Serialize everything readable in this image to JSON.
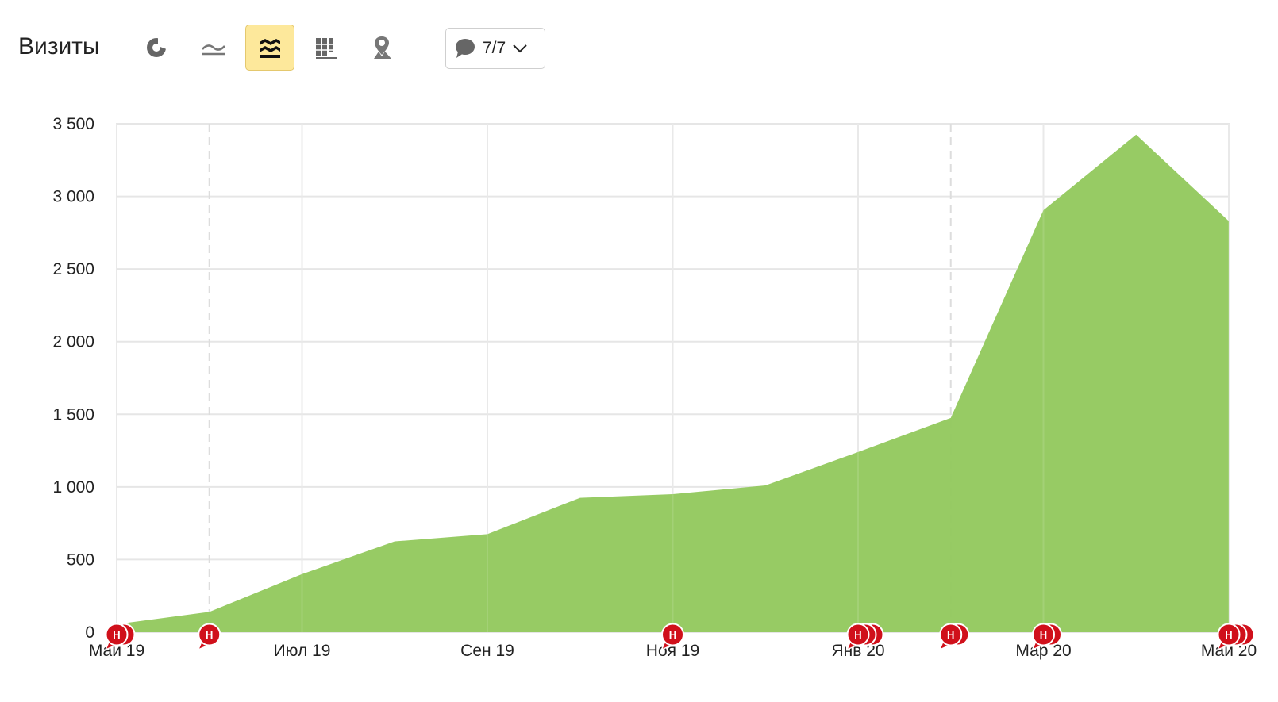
{
  "title": "Визиты",
  "toolbar": {
    "buttons": [
      {
        "name": "pie-chart-icon",
        "active": false
      },
      {
        "name": "line-chart-icon",
        "active": false
      },
      {
        "name": "area-chart-icon",
        "active": true
      },
      {
        "name": "bar-chart-icon",
        "active": false
      },
      {
        "name": "map-icon",
        "active": false
      }
    ],
    "comments_count": "7/7",
    "comments_icon": "speech-bubble-icon",
    "dropdown_icon": "chevron-down-icon"
  },
  "colors": {
    "area": "#94c95f",
    "active_button": "#fde89b",
    "marker": "#d0101b",
    "grid": "#e6e6e6"
  },
  "chart_data": {
    "type": "area",
    "title": "Визиты",
    "xlabel": "",
    "ylabel": "",
    "ylim": [
      0,
      3500
    ],
    "yticks": [
      0,
      500,
      1000,
      1500,
      2000,
      2500,
      3000,
      3500
    ],
    "ytick_labels": [
      "0",
      "500",
      "1 000",
      "1 500",
      "2 000",
      "2 500",
      "3 000",
      "3 500"
    ],
    "x": [
      "2019-05",
      "2019-06",
      "2019-07",
      "2019-08",
      "2019-09",
      "2019-10",
      "2019-11",
      "2019-12",
      "2020-01",
      "2020-02",
      "2020-03",
      "2020-04",
      "2020-05"
    ],
    "xtick_labels": [
      "Май 19",
      "Июл 19",
      "Сен 19",
      "Ноя 19",
      "Янв 20",
      "Мар 20",
      "Май 20"
    ],
    "xtick_months": [
      "2019-05",
      "2019-07",
      "2019-09",
      "2019-11",
      "2020-01",
      "2020-03",
      "2020-05"
    ],
    "series": [
      {
        "values": [
          55,
          140,
          400,
          625,
          675,
          925,
          950,
          1010,
          1240,
          1475,
          2905,
          3425,
          2830
        ]
      }
    ],
    "dashed_gridlines_at": [
      "2019-06",
      "2020-02"
    ],
    "annotations": [
      {
        "month": "2019-05",
        "label": "Н",
        "count": 2
      },
      {
        "month": "2019-06",
        "label": "Н",
        "count": 1
      },
      {
        "month": "2019-11",
        "label": "Н",
        "count": 1
      },
      {
        "month": "2020-01",
        "label": "Н",
        "count": 3
      },
      {
        "month": "2020-02",
        "label": "Н",
        "count": 2
      },
      {
        "month": "2020-03",
        "label": "Н",
        "count": 2
      },
      {
        "month": "2020-05",
        "label": "Н",
        "count": 3
      }
    ],
    "grid": true
  }
}
